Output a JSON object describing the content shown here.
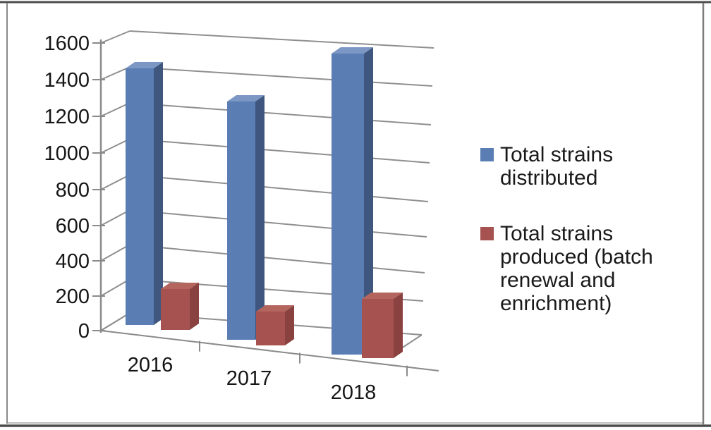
{
  "frame": {
    "background": "#ffffff",
    "border_top_color": "#4c4c4c",
    "border_bottom_color": "#4c4c4c",
    "border_side_color": "#8a8a8a"
  },
  "colors": {
    "gridline": "#8f8f8f",
    "axis": "#8a8a8a",
    "tick_label_text": "#161616",
    "legend_text": "#1a1a1a"
  },
  "chart_data": {
    "type": "bar",
    "style": "3d-clustered-column",
    "title": "",
    "xlabel": "",
    "ylabel": "",
    "categories": [
      "2016",
      "2017",
      "2018"
    ],
    "series": [
      {
        "name": "Total strains distributed",
        "color": "#5a7db4",
        "color_top": "#7c97c4",
        "color_side": "#3f577e",
        "values": [
          1440,
          1270,
          1530
        ]
      },
      {
        "name": "Total strains produced (batch renewal and enrichment)",
        "color": "#a65250",
        "color_top": "#b3655e",
        "color_side": "#8a4240",
        "values": [
          230,
          180,
          300
        ]
      }
    ],
    "ylim": [
      0,
      1600
    ],
    "ytick_step": 200,
    "ytick_labels": [
      "0",
      "200",
      "400",
      "600",
      "800",
      "1000",
      "1200",
      "1400",
      "1600"
    ],
    "grid": true,
    "legend_position": "right"
  }
}
